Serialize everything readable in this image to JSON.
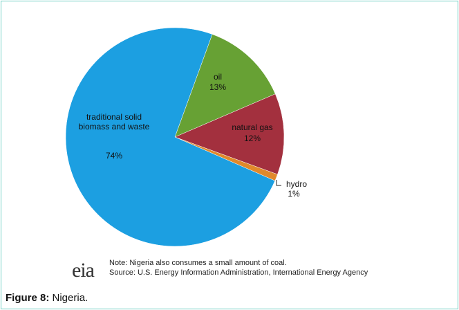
{
  "chart_data": {
    "type": "pie",
    "categories": [
      "oil",
      "natural gas",
      "hydro",
      "traditional solid biomass and waste"
    ],
    "values": [
      13,
      12,
      1,
      74
    ],
    "value_labels": [
      "13%",
      "12%",
      "1%",
      "74%"
    ],
    "colors": [
      "#67a134",
      "#a3303e",
      "#e0892b",
      "#1c9fe1"
    ],
    "note": "Note:  Nigeria also consumes a small amount of coal.",
    "source": "Source: U.S. Energy Information Administration, International Energy Agency",
    "logo": "eia"
  },
  "caption": {
    "label": "Figure 8:",
    "text": "Nigeria."
  }
}
